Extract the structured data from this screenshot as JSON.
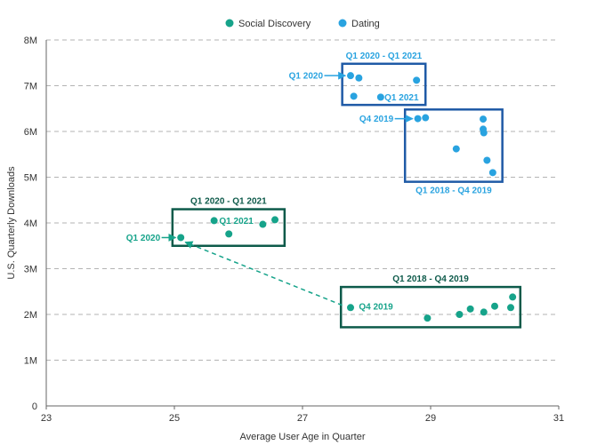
{
  "chart_data": {
    "type": "scatter",
    "title": "",
    "xlabel": "Average User Age in Quarter",
    "ylabel": "U.S. Quarterly Downloads",
    "xlim": [
      23,
      31
    ],
    "ylim": [
      0,
      8
    ],
    "x_ticks": [
      {
        "value": 23,
        "label": "23"
      },
      {
        "value": 25,
        "label": "25"
      },
      {
        "value": 27,
        "label": "27"
      },
      {
        "value": 29,
        "label": "29"
      },
      {
        "value": 31,
        "label": "31"
      }
    ],
    "y_ticks": [
      {
        "value": 0,
        "label": "0"
      },
      {
        "value": 1,
        "label": "1M"
      },
      {
        "value": 2,
        "label": "2M"
      },
      {
        "value": 3,
        "label": "3M"
      },
      {
        "value": 4,
        "label": "4M"
      },
      {
        "value": 5,
        "label": "5M"
      },
      {
        "value": 6,
        "label": "6M"
      },
      {
        "value": 7,
        "label": "7M"
      },
      {
        "value": 8,
        "label": "8M"
      }
    ],
    "grid": "horizontal",
    "legend_position": "top-center",
    "series": [
      {
        "name": "Social Discovery",
        "color": "#16a38a",
        "points": [
          {
            "x": 27.75,
            "y": 2.15
          },
          {
            "x": 28.95,
            "y": 1.92
          },
          {
            "x": 29.45,
            "y": 2.0
          },
          {
            "x": 29.62,
            "y": 2.12
          },
          {
            "x": 29.83,
            "y": 2.05
          },
          {
            "x": 30.0,
            "y": 2.18
          },
          {
            "x": 30.25,
            "y": 2.15
          },
          {
            "x": 30.28,
            "y": 2.38
          },
          {
            "x": 25.1,
            "y": 3.68
          },
          {
            "x": 25.62,
            "y": 4.05
          },
          {
            "x": 25.85,
            "y": 3.76
          },
          {
            "x": 26.38,
            "y": 3.97
          },
          {
            "x": 26.57,
            "y": 4.07
          }
        ]
      },
      {
        "name": "Dating",
        "color": "#29a3e0",
        "points": [
          {
            "x": 27.75,
            "y": 7.22
          },
          {
            "x": 27.88,
            "y": 7.17
          },
          {
            "x": 27.8,
            "y": 6.77
          },
          {
            "x": 28.22,
            "y": 6.75
          },
          {
            "x": 28.78,
            "y": 7.12
          },
          {
            "x": 28.8,
            "y": 6.28
          },
          {
            "x": 28.92,
            "y": 6.3
          },
          {
            "x": 29.4,
            "y": 5.62
          },
          {
            "x": 29.82,
            "y": 6.27
          },
          {
            "x": 29.82,
            "y": 6.05
          },
          {
            "x": 29.83,
            "y": 5.97
          },
          {
            "x": 29.88,
            "y": 5.37
          },
          {
            "x": 29.97,
            "y": 5.1
          }
        ]
      }
    ],
    "annotations": {
      "boxes": [
        {
          "name": "dating-q1-2020-q1-2021-box",
          "color": "#1f5aa6",
          "x0": 27.62,
          "x1": 28.92,
          "y0": 6.58,
          "y1": 7.48,
          "title": "Q1 2020 - Q1 2021",
          "title_pos": "top",
          "title_color": "#29a3e0"
        },
        {
          "name": "dating-q1-2018-q4-2019-box",
          "color": "#1f5aa6",
          "x0": 28.6,
          "x1": 30.12,
          "y0": 4.9,
          "y1": 6.48,
          "title": "Q1 2018 - Q4 2019",
          "title_pos": "bottom",
          "title_color": "#29a3e0"
        },
        {
          "name": "social-q1-2020-q1-2021-box",
          "color": "#0d5a4a",
          "x0": 24.97,
          "x1": 26.72,
          "y0": 3.5,
          "y1": 4.3,
          "title": "Q1 2020 - Q1 2021",
          "title_pos": "top",
          "title_color": "#0d5a4a"
        },
        {
          "name": "social-q1-2018-q4-2019-box",
          "color": "#0d5a4a",
          "x0": 27.6,
          "x1": 30.4,
          "y0": 1.72,
          "y1": 2.6,
          "title": "Q1 2018 - Q4 2019",
          "title_pos": "top",
          "title_color": "#0d5a4a"
        }
      ],
      "labels": [
        {
          "name": "dating-q1-2020-label",
          "text": "Q1 2020",
          "x": 27.32,
          "y": 7.22,
          "color": "#29a3e0",
          "anchor": "end"
        },
        {
          "name": "dating-q1-2021-label",
          "text": "Q1 2021",
          "x": 28.28,
          "y": 6.75,
          "color": "#29a3e0",
          "anchor": "start"
        },
        {
          "name": "dating-q4-2019-label",
          "text": "Q4 2019",
          "x": 28.42,
          "y": 6.28,
          "color": "#29a3e0",
          "anchor": "end"
        },
        {
          "name": "social-q1-2020-label",
          "text": "Q1 2020",
          "x": 24.78,
          "y": 3.68,
          "color": "#16a38a",
          "anchor": "end"
        },
        {
          "name": "social-q1-2021-label",
          "text": "Q1 2021",
          "x": 25.7,
          "y": 4.05,
          "color": "#16a38a",
          "anchor": "start"
        },
        {
          "name": "social-q4-2019-label",
          "text": "Q4 2019",
          "x": 27.88,
          "y": 2.17,
          "color": "#16a38a",
          "anchor": "start"
        }
      ],
      "arrows": [
        {
          "name": "dating-q1-2020-arrow",
          "x0": 27.34,
          "y0": 7.22,
          "x1": 27.67,
          "y1": 7.22,
          "color": "#29a3e0",
          "dashed": false
        },
        {
          "name": "dating-q4-2019-arrow",
          "x0": 28.44,
          "y0": 6.28,
          "x1": 28.72,
          "y1": 6.28,
          "color": "#29a3e0",
          "dashed": false
        },
        {
          "name": "social-q1-2020-arrow",
          "x0": 24.8,
          "y0": 3.68,
          "x1": 25.02,
          "y1": 3.68,
          "color": "#16a38a",
          "dashed": false
        },
        {
          "name": "social-trend-arrow",
          "x0": 27.62,
          "y0": 2.2,
          "x1": 25.17,
          "y1": 3.58,
          "color": "#16a38a",
          "dashed": true
        }
      ]
    }
  }
}
